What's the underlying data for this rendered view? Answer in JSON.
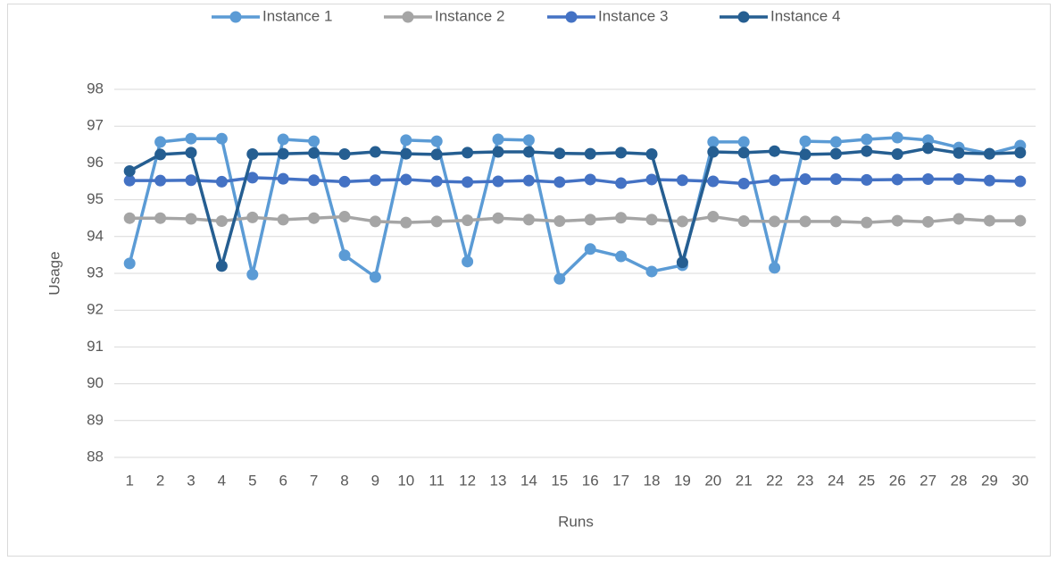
{
  "chart_data": {
    "type": "line",
    "xlabel": "Runs",
    "ylabel": "Usage",
    "categories": [
      "1",
      "2",
      "3",
      "4",
      "5",
      "6",
      "7",
      "8",
      "9",
      "10",
      "11",
      "12",
      "13",
      "14",
      "15",
      "16",
      "17",
      "18",
      "19",
      "20",
      "21",
      "22",
      "23",
      "24",
      "25",
      "26",
      "27",
      "28",
      "29",
      "30"
    ],
    "series": [
      {
        "name": "Instance 1",
        "color": "#5b9bd5",
        "values": [
          93.27,
          96.57,
          96.66,
          96.66,
          92.97,
          96.64,
          96.59,
          93.49,
          92.9,
          96.62,
          96.59,
          93.32,
          96.64,
          96.62,
          92.85,
          93.66,
          93.46,
          93.05,
          93.22,
          96.57,
          96.57,
          93.15,
          96.59,
          96.57,
          96.64,
          96.69,
          96.62,
          96.42,
          96.25,
          96.47
        ]
      },
      {
        "name": "Instance 2",
        "color": "#a5a5a5",
        "values": [
          94.5,
          94.5,
          94.48,
          94.42,
          94.52,
          94.46,
          94.5,
          94.54,
          94.41,
          94.38,
          94.41,
          94.44,
          94.5,
          94.46,
          94.42,
          94.46,
          94.51,
          94.46,
          94.41,
          94.54,
          94.42,
          94.41,
          94.41,
          94.41,
          94.38,
          94.43,
          94.4,
          94.48,
          94.43,
          94.43
        ]
      },
      {
        "name": "Instance 3",
        "color": "#4472c4",
        "values": [
          95.52,
          95.52,
          95.53,
          95.49,
          95.6,
          95.57,
          95.53,
          95.49,
          95.53,
          95.55,
          95.5,
          95.48,
          95.5,
          95.52,
          95.48,
          95.55,
          95.45,
          95.55,
          95.53,
          95.5,
          95.44,
          95.53,
          95.56,
          95.56,
          95.54,
          95.55,
          95.56,
          95.56,
          95.52,
          95.5
        ]
      },
      {
        "name": "Instance 4",
        "color": "#255e91",
        "values": [
          95.78,
          96.23,
          96.28,
          93.2,
          96.24,
          96.25,
          96.27,
          96.24,
          96.3,
          96.25,
          96.23,
          96.28,
          96.3,
          96.3,
          96.26,
          96.25,
          96.28,
          96.24,
          93.3,
          96.3,
          96.28,
          96.32,
          96.23,
          96.25,
          96.32,
          96.24,
          96.4,
          96.27,
          96.25,
          96.28
        ]
      }
    ],
    "ylim": [
      88,
      98
    ],
    "yticks": [
      88,
      89,
      90,
      91,
      92,
      93,
      94,
      95,
      96,
      97,
      98
    ],
    "grid": true,
    "legend": "top"
  }
}
